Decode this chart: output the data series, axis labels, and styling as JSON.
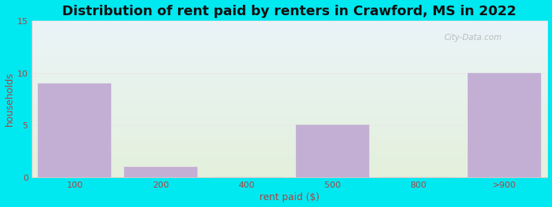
{
  "title": "Distribution of rent paid by renters in Crawford, MS in 2022",
  "xlabel": "rent paid ($)",
  "ylabel": "households",
  "categories": [
    "100",
    "200",
    "400",
    "500",
    "800",
    ">900"
  ],
  "values": [
    9,
    1,
    0,
    5,
    0,
    10
  ],
  "bar_color": "#c4afd4",
  "bar_edgecolor": "#c4afd4",
  "ylim": [
    0,
    15
  ],
  "yticks": [
    0,
    5,
    10,
    15
  ],
  "background_outer": "#00e8f0",
  "background_top": "#eaf4f8",
  "background_bottom": "#e4f0dc",
  "title_fontsize": 14,
  "axis_label_fontsize": 10,
  "tick_fontsize": 9,
  "tick_color": "#aa4444",
  "label_color": "#aa4444",
  "title_color": "#111111",
  "watermark_text": "City-Data.com",
  "watermark_color": "#aaaaaa",
  "grid_color": "#e8e8e8",
  "x_positions": [
    0,
    1,
    2,
    3,
    4,
    5
  ],
  "x_tick_positions": [
    0,
    1,
    2,
    3,
    4,
    5
  ],
  "bar_width": 0.85
}
